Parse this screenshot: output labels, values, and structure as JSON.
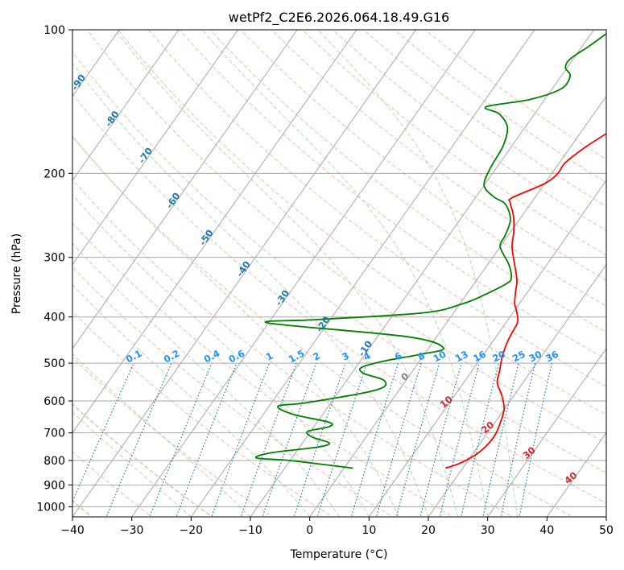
{
  "chart_data": {
    "type": "line",
    "title": "wetPf2_C2E6.2026.064.18.49.G16",
    "xlabel": "Temperature (°C)",
    "ylabel": "Pressure (hPa)",
    "xlim": [
      -40,
      50
    ],
    "ylim": [
      1050,
      100
    ],
    "y_scale": "log",
    "skew_per_decade_pct": 0.63,
    "xticks": [
      "−40",
      "−30",
      "−20",
      "−10",
      "0",
      "10",
      "20",
      "30",
      "40",
      "50"
    ],
    "yticks": [
      {
        "p": 100,
        "label": "100"
      },
      {
        "p": 200,
        "label": "200"
      },
      {
        "p": 300,
        "label": "300"
      },
      {
        "p": 400,
        "label": "400"
      },
      {
        "p": 500,
        "label": "500"
      },
      {
        "p": 600,
        "label": "600"
      },
      {
        "p": 700,
        "label": "700"
      },
      {
        "p": 800,
        "label": "800"
      },
      {
        "p": 900,
        "label": "900"
      },
      {
        "p": 1000,
        "label": "1000"
      }
    ],
    "series": [
      {
        "name": "Temperature",
        "color": "#ff0000",
        "points": [
          [
            17.1,
            830
          ],
          [
            19.0,
            810
          ],
          [
            20.7,
            775
          ],
          [
            21.4,
            740
          ],
          [
            21.5,
            705
          ],
          [
            21.0,
            670
          ],
          [
            20.0,
            625
          ],
          [
            18.0,
            585
          ],
          [
            15.7,
            550
          ],
          [
            14.7,
            520
          ],
          [
            13.6,
            490
          ],
          [
            13.0,
            470
          ],
          [
            12.5,
            450
          ],
          [
            12.2,
            430
          ],
          [
            11.9,
            410
          ],
          [
            10.5,
            390
          ],
          [
            9.2,
            375
          ],
          [
            8.0,
            355
          ],
          [
            6.8,
            335
          ],
          [
            4.5,
            310
          ],
          [
            2.0,
            285
          ],
          [
            0.5,
            265
          ],
          [
            -1.5,
            245
          ],
          [
            -3.6,
            230
          ],
          [
            -3.8,
            225
          ],
          [
            0.0,
            210
          ],
          [
            1.0,
            200
          ],
          [
            1.0,
            190
          ],
          [
            2.7,
            175
          ],
          [
            5.5,
            160
          ],
          [
            8.8,
            145
          ],
          [
            10.3,
            135
          ],
          [
            12.0,
            125
          ],
          [
            13.0,
            115
          ],
          [
            13.5,
            108
          ],
          [
            13.5,
            100
          ]
        ]
      },
      {
        "name": "Dewpoint",
        "color": "#008000",
        "points": [
          [
            1.5,
            830
          ],
          [
            -10.0,
            800
          ],
          [
            -16.0,
            790
          ],
          [
            -14.0,
            770
          ],
          [
            -7.0,
            750
          ],
          [
            -5.5,
            735
          ],
          [
            -9.0,
            715
          ],
          [
            -10.5,
            695
          ],
          [
            -7.5,
            680
          ],
          [
            -8.0,
            665
          ],
          [
            -15.0,
            640
          ],
          [
            -18.5,
            615
          ],
          [
            -14.0,
            605
          ],
          [
            -4.0,
            570
          ],
          [
            -3.5,
            545
          ],
          [
            -8.0,
            525
          ],
          [
            -9.0,
            510
          ],
          [
            -6.0,
            495
          ],
          [
            -1.0,
            480
          ],
          [
            2.5,
            465
          ],
          [
            -5.0,
            440
          ],
          [
            -30.0,
            412
          ],
          [
            -22.0,
            405
          ],
          [
            -5.0,
            392
          ],
          [
            0.5,
            375
          ],
          [
            3.0,
            360
          ],
          [
            5.5,
            340
          ],
          [
            5.5,
            330
          ],
          [
            3.5,
            310
          ],
          [
            0.0,
            285
          ],
          [
            -0.5,
            270
          ],
          [
            -1.5,
            250
          ],
          [
            -4.2,
            232
          ],
          [
            -7.0,
            224
          ],
          [
            -10.0,
            212
          ],
          [
            -11.0,
            195
          ],
          [
            -11.5,
            175
          ],
          [
            -13.0,
            160
          ],
          [
            -16.0,
            150
          ],
          [
            -19.0,
            145
          ],
          [
            -12.5,
            140
          ],
          [
            -8.5,
            133
          ],
          [
            -8.5,
            125
          ],
          [
            -10.3,
            120
          ],
          [
            -10.5,
            115
          ],
          [
            -8.8,
            108
          ],
          [
            -7.0,
            100
          ]
        ]
      }
    ],
    "isotherms": [
      -130,
      -120,
      -110,
      -100,
      -90,
      -80,
      -70,
      -60,
      -50,
      -40,
      -30,
      -20,
      -10,
      0,
      10,
      20,
      30,
      40,
      50
    ],
    "dry_adiabats": [
      -50,
      -40,
      -30,
      -20,
      -10,
      0,
      10,
      20,
      30,
      40,
      50,
      60,
      70,
      80,
      90,
      100,
      110,
      120,
      130,
      140,
      150,
      160,
      170,
      180
    ],
    "moist_adiabats": [
      -20,
      -10,
      0,
      5,
      10,
      15,
      20,
      25,
      30,
      35
    ],
    "mixing_ratios": [
      0.1,
      0.2,
      0.4,
      0.6,
      1,
      1.5,
      2,
      3,
      4,
      6,
      8,
      10,
      13,
      16,
      20,
      25,
      30,
      36
    ],
    "mixing_labels": [
      "0.1",
      "0.2",
      "0.4",
      "0.6",
      "1",
      "1.5",
      "2",
      "3",
      "4",
      "6",
      "8",
      "10",
      "13",
      "16",
      "20",
      "25",
      "30",
      "36"
    ],
    "dry_adiabat_labels": [
      {
        "text": "-100",
        "t": -100,
        "p": 115
      },
      {
        "text": "-90",
        "t": -90,
        "p": 130
      },
      {
        "text": "-80",
        "t": -80,
        "p": 155
      },
      {
        "text": "-70",
        "t": -70,
        "p": 185
      },
      {
        "text": "-60",
        "t": -60,
        "p": 230
      },
      {
        "text": "-50",
        "t": -50,
        "p": 275
      },
      {
        "text": "-40",
        "t": -40,
        "p": 320
      },
      {
        "text": "-30",
        "t": -30,
        "p": 368
      },
      {
        "text": "-20",
        "t": -20,
        "p": 418
      },
      {
        "text": "-10",
        "t": -10,
        "p": 470
      }
    ],
    "moist_adiabat_labels": [
      {
        "text": "0",
        "t": 0,
        "p": 540,
        "color": "#808080"
      },
      {
        "text": "10",
        "t": 10,
        "p": 610,
        "color": "#d62728"
      },
      {
        "text": "20",
        "t": 20,
        "p": 690,
        "color": "#d62728"
      },
      {
        "text": "30",
        "t": 30,
        "p": 780,
        "color": "#d62728"
      },
      {
        "text": "40",
        "t": 40,
        "p": 880,
        "color": "#d62728"
      }
    ],
    "colors": {
      "temperature": "#ff0000",
      "dewpoint": "#008000",
      "isotherm": "#a9a9a9",
      "isobar": "#a9a9a9",
      "dry_adiabat": "#f4a582",
      "moist_adiabat": "#8fcf8f",
      "mixing_ratio": "#1f77b4",
      "mixing_label": "#1e90ff",
      "dry_label": "#1f77b4",
      "old_adiabat": "#d2b48c"
    }
  }
}
